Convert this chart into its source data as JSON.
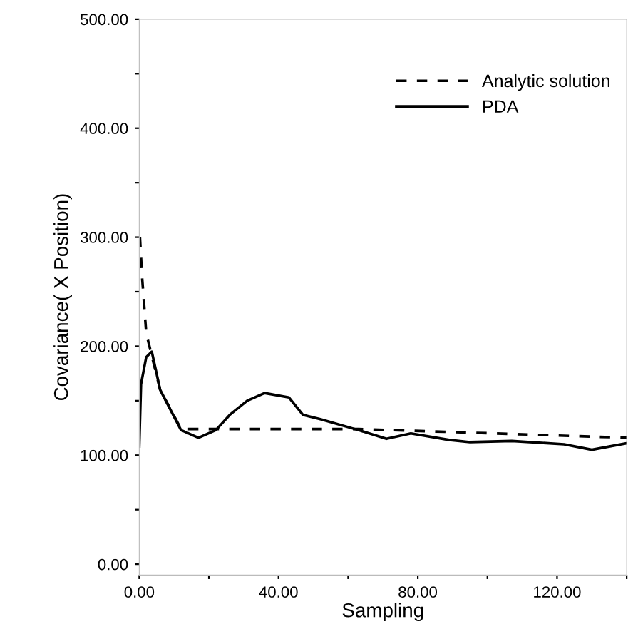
{
  "chart_data": {
    "type": "line",
    "xlabel": "Sampling",
    "ylabel": "Covariance( X Position)",
    "xlim": [
      0,
      140
    ],
    "ylim": [
      -10,
      500
    ],
    "xticks": [
      {
        "value": 0,
        "label": "0.00"
      },
      {
        "value": 20,
        "label": null
      },
      {
        "value": 40,
        "label": "40.00"
      },
      {
        "value": 60,
        "label": null
      },
      {
        "value": 80,
        "label": "80.00"
      },
      {
        "value": 100,
        "label": null
      },
      {
        "value": 120,
        "label": "120.00"
      },
      {
        "value": 140,
        "label": null
      }
    ],
    "yticks": [
      {
        "value": 0,
        "label": "0.00"
      },
      {
        "value": 50,
        "label": null
      },
      {
        "value": 100,
        "label": "100.00"
      },
      {
        "value": 150,
        "label": null
      },
      {
        "value": 200,
        "label": "200.00"
      },
      {
        "value": 250,
        "label": null
      },
      {
        "value": 300,
        "label": "300.00"
      },
      {
        "value": 350,
        "label": null
      },
      {
        "value": 400,
        "label": "400.00"
      },
      {
        "value": 450,
        "label": null
      },
      {
        "value": 500,
        "label": "500.00"
      }
    ],
    "legend": "top right",
    "grid": false,
    "marker": "none",
    "series": [
      {
        "name": "Analytic solution",
        "color": "#000000",
        "line_style": "dashed",
        "x": [
          0.2,
          0.8,
          2,
          6,
          12,
          24,
          63,
          140
        ],
        "values": [
          300,
          264,
          212,
          160,
          124,
          124,
          124,
          116
        ]
      },
      {
        "name": "PDA",
        "color": "#000000",
        "line_style": "solid",
        "x": [
          0,
          0.5,
          2,
          3.6,
          6,
          12,
          17,
          22,
          26,
          31,
          36,
          43,
          47,
          52,
          63,
          71,
          78,
          89,
          95,
          107,
          122,
          130,
          140
        ],
        "values": [
          108,
          165,
          190,
          195,
          160,
          123,
          116,
          123,
          137,
          150,
          157,
          153,
          137,
          133,
          123,
          115,
          120,
          114,
          112,
          113,
          110,
          105,
          111
        ]
      }
    ]
  }
}
